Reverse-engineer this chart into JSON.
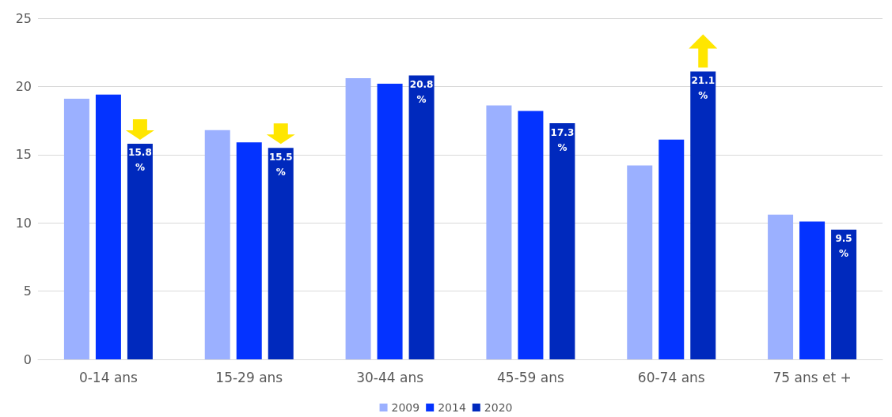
{
  "chart_data": {
    "type": "bar",
    "categories": [
      "0-14 ans",
      "15-29 ans",
      "30-44 ans",
      "45-59 ans",
      "60-74 ans",
      "75 ans et +"
    ],
    "series": [
      {
        "name": "2009",
        "color": "#9bb0ff",
        "values": [
          19.1,
          16.8,
          20.6,
          18.6,
          14.2,
          10.6
        ]
      },
      {
        "name": "2014",
        "color": "#0433ff",
        "values": [
          19.4,
          15.9,
          20.2,
          18.2,
          16.1,
          10.1
        ]
      },
      {
        "name": "2020",
        "color": "#0029bd",
        "values": [
          15.8,
          15.5,
          20.8,
          17.3,
          21.1,
          9.5
        ],
        "value_labels": [
          "15.8 %",
          "15.5 %",
          "20.8 %",
          "17.3 %",
          "21.1 %",
          "9.5 %"
        ]
      }
    ],
    "ylim": [
      0,
      25
    ],
    "yticks": [
      0,
      5,
      10,
      15,
      20,
      25
    ],
    "grid": "y",
    "legend": "bottom"
  }
}
